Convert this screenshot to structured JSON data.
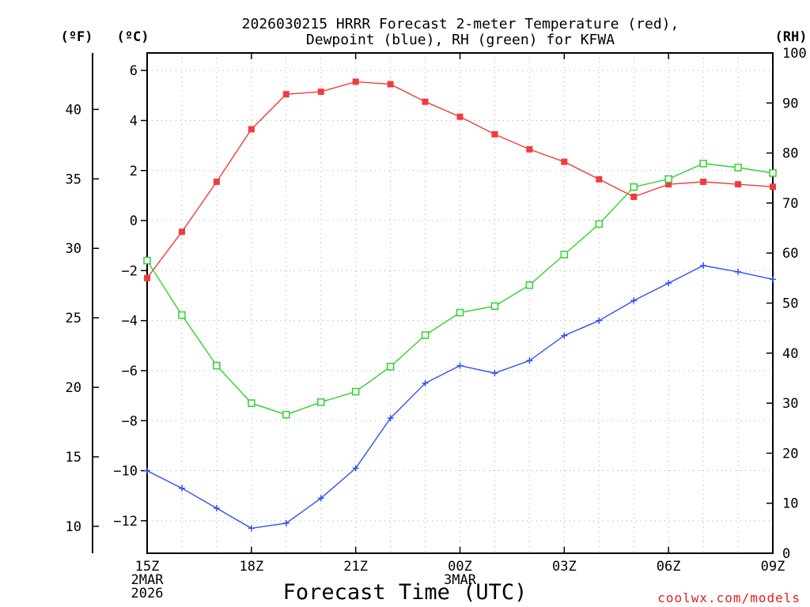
{
  "chart_data": {
    "type": "line",
    "title": "2026030215 HRRR Forecast 2-meter Temperature (red),",
    "subtitle": "Dewpoint (blue), RH (green) for KFWA",
    "xlabel": "Forecast Time (UTC)",
    "credit": "coolwx.com/models",
    "axis_titles": {
      "fahrenheit": "(ºF)",
      "celsius": "(ºC)",
      "rh": "(RH)"
    },
    "x": [
      0,
      1,
      2,
      3,
      4,
      5,
      6,
      7,
      8,
      9,
      10,
      11,
      12,
      13,
      14,
      15,
      16,
      17,
      18
    ],
    "xlim": [
      0,
      18
    ],
    "x_ticks": [
      {
        "x": 0,
        "lines": [
          "15Z",
          "2MAR",
          "2026"
        ]
      },
      {
        "x": 3,
        "lines": [
          "18Z"
        ]
      },
      {
        "x": 6,
        "lines": [
          "21Z"
        ]
      },
      {
        "x": 9,
        "lines": [
          "00Z",
          "3MAR"
        ]
      },
      {
        "x": 12,
        "lines": [
          "03Z"
        ]
      },
      {
        "x": 15,
        "lines": [
          "06Z"
        ]
      },
      {
        "x": 18,
        "lines": [
          "09Z"
        ]
      }
    ],
    "celsius_axis": {
      "ylim": [
        -13.3,
        6.7
      ],
      "ticks": [
        6,
        4,
        2,
        0,
        -2,
        -4,
        -6,
        -8,
        -10,
        -12
      ]
    },
    "fahrenheit_axis": {
      "ylim": [
        8.06,
        44.06
      ],
      "ticks": [
        40,
        35,
        30,
        25,
        20,
        15,
        10
      ]
    },
    "rh_axis": {
      "ylim": [
        0,
        100
      ],
      "ticks": [
        100,
        90,
        80,
        70,
        60,
        50,
        40,
        30,
        20,
        10,
        0
      ]
    },
    "series": [
      {
        "name": "Temperature",
        "axis": "celsius",
        "color": "#f03c3c",
        "marker": "filled-square",
        "values": [
          -2.3,
          -0.45,
          1.55,
          3.65,
          5.05,
          5.15,
          5.55,
          5.45,
          4.75,
          4.15,
          3.45,
          2.85,
          2.35,
          1.65,
          0.95,
          1.45,
          1.55,
          1.45,
          1.35
        ]
      },
      {
        "name": "Dewpoint",
        "axis": "celsius",
        "color": "#3050f0",
        "marker": "plus",
        "values": [
          -10.0,
          -10.7,
          -11.5,
          -12.3,
          -12.1,
          -11.1,
          -9.9,
          -7.9,
          -6.5,
          -5.8,
          -6.1,
          -5.6,
          -4.6,
          -4.0,
          -3.2,
          -2.5,
          -1.8,
          -2.05,
          -2.35
        ]
      },
      {
        "name": "RH",
        "axis": "rh",
        "color": "#30d030",
        "marker": "open-square",
        "values": [
          58.5,
          47.6,
          37.5,
          30.0,
          27.7,
          30.2,
          32.3,
          37.3,
          43.6,
          48.1,
          49.4,
          53.6,
          59.7,
          65.8,
          73.2,
          74.8,
          77.9,
          77.1,
          76.0
        ]
      }
    ]
  }
}
